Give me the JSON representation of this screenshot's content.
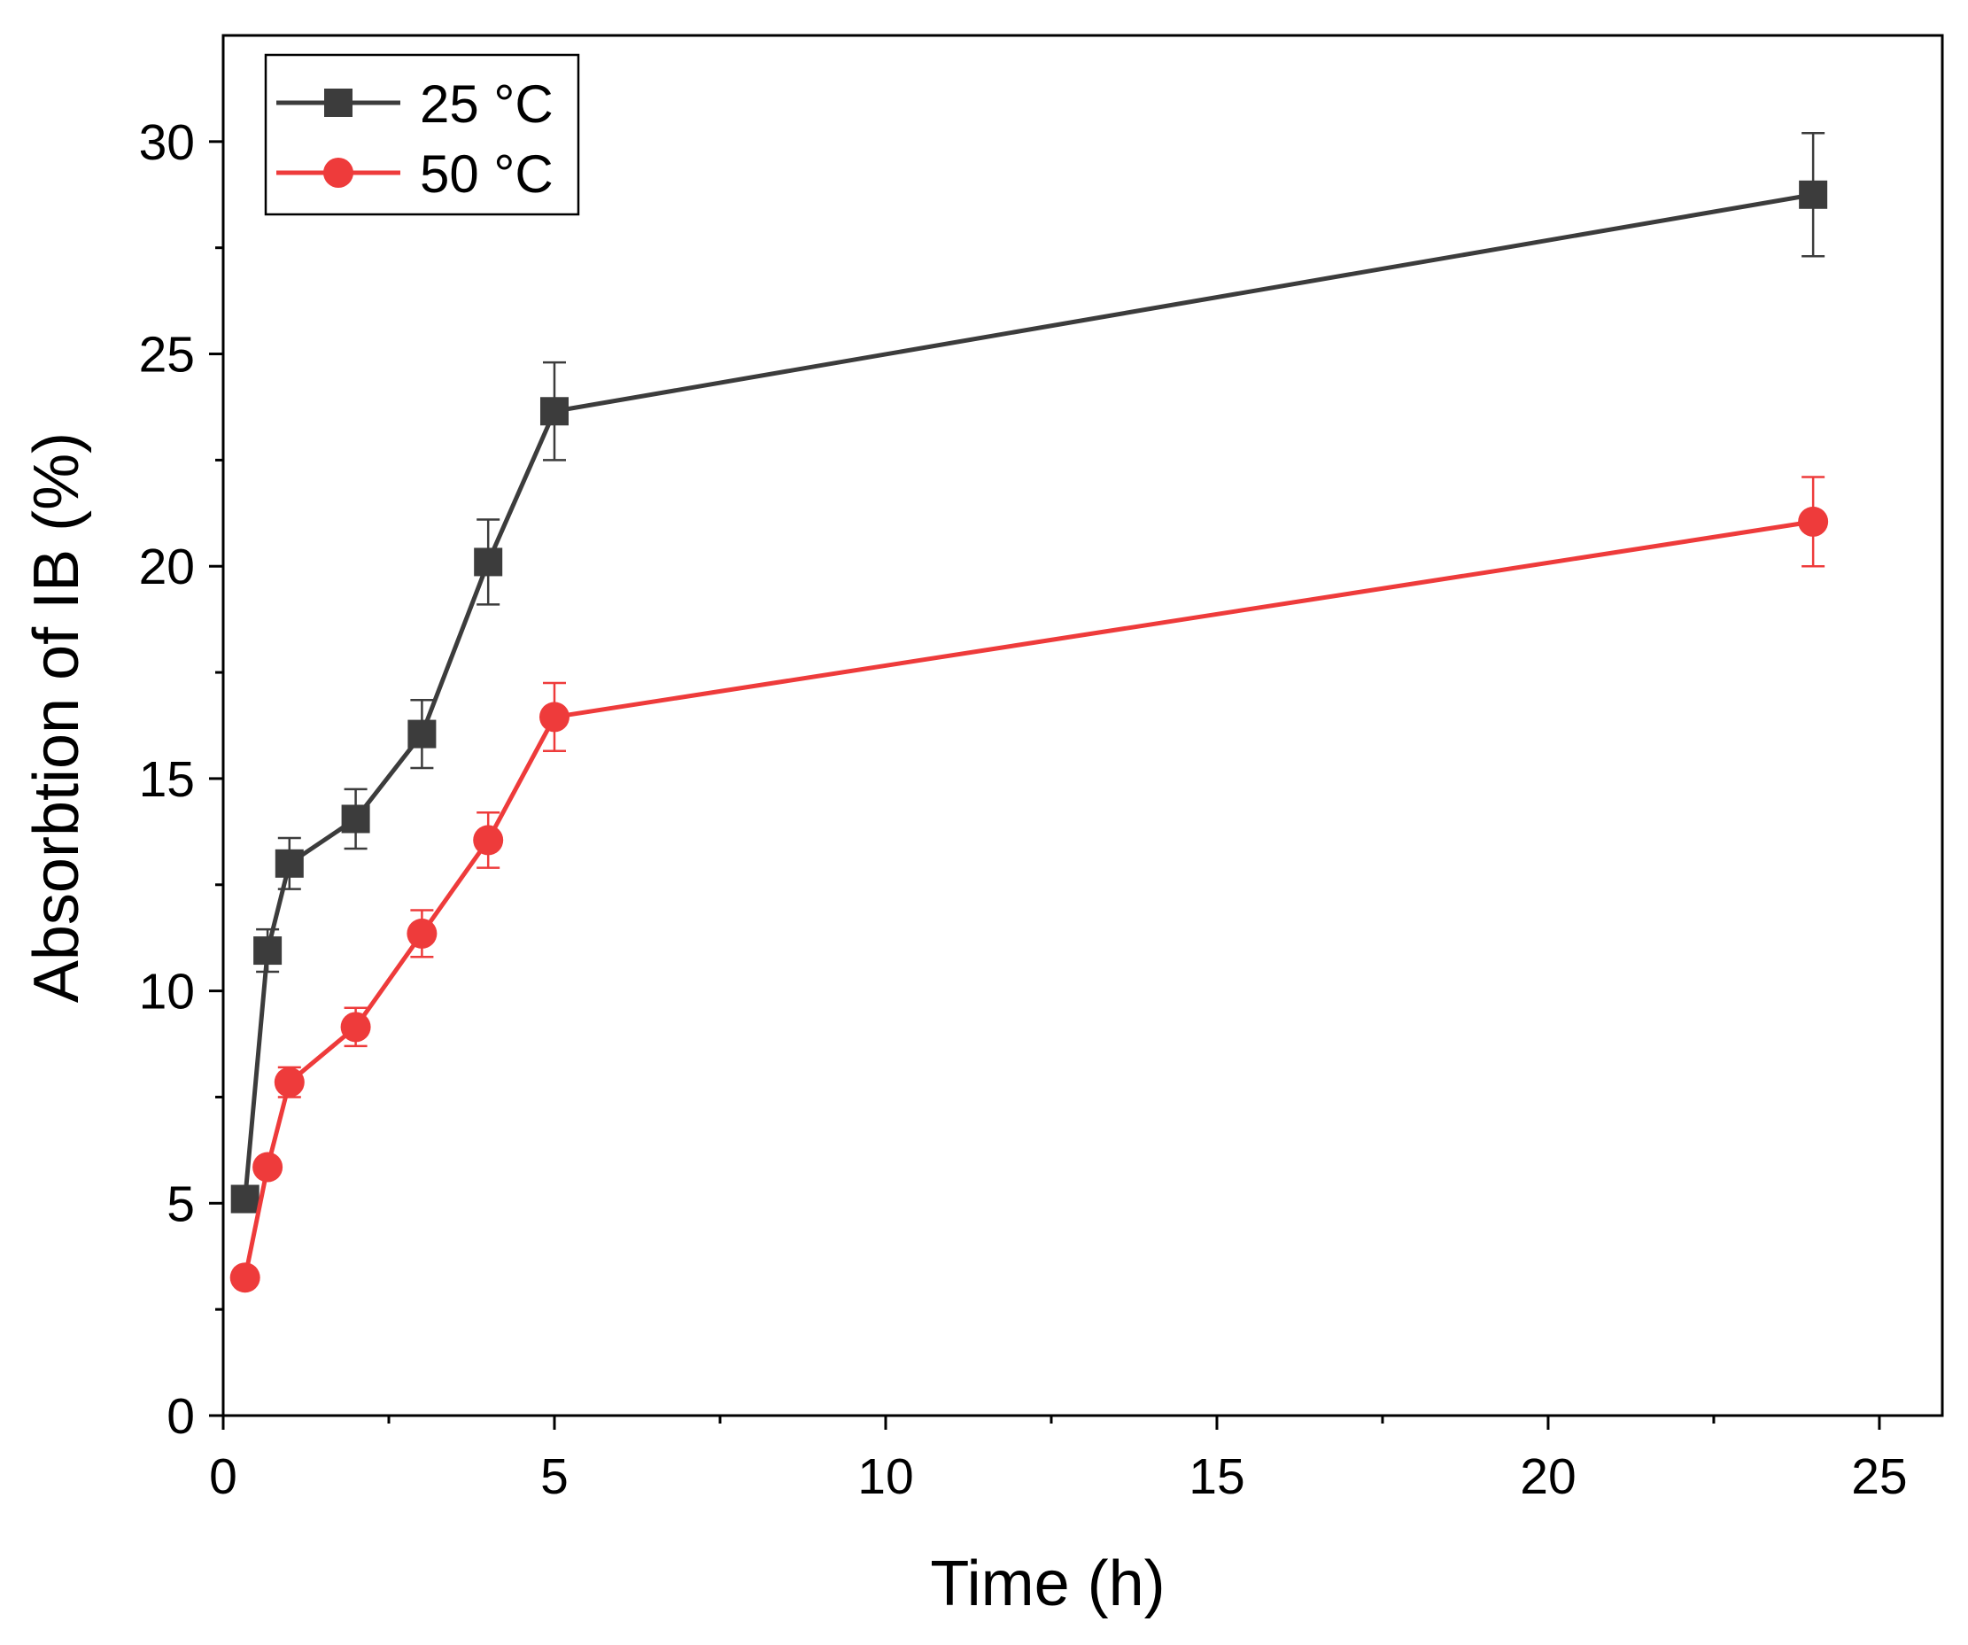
{
  "chart_data": {
    "type": "line",
    "title": "",
    "xlabel": "Time (h)",
    "ylabel": "Absorbtion of IB (%)",
    "xlim": [
      0,
      25.95
    ],
    "ylim": [
      0,
      32.5
    ],
    "xticks": [
      0,
      5,
      10,
      15,
      20,
      25
    ],
    "xtick_labels": [
      "0",
      "5",
      "10",
      "15",
      "20",
      "25"
    ],
    "yticks": [
      0,
      5,
      10,
      15,
      20,
      25,
      30
    ],
    "ytick_labels": [
      "0",
      "5",
      "10",
      "15",
      "20",
      "25",
      "30"
    ],
    "x_minor_ticks": [
      2.5,
      7.5,
      12.5,
      17.5,
      22.5
    ],
    "y_minor_ticks": [
      2.5,
      7.5,
      12.5,
      17.5,
      22.5,
      27.5
    ],
    "grid": false,
    "legend_position": "top-left",
    "series": [
      {
        "name": "25 °C",
        "color": "#3c3c3c",
        "marker": "square",
        "x": [
          0.33,
          0.67,
          1,
          2,
          3,
          4,
          5,
          24
        ],
        "y": [
          5.1,
          10.95,
          13.0,
          14.05,
          16.05,
          20.1,
          23.65,
          28.75
        ],
        "error": [
          0.0,
          0.5,
          0.6,
          0.7,
          0.8,
          1.0,
          1.15,
          1.45
        ]
      },
      {
        "name": "50 °C",
        "color": "#ee3b3b",
        "marker": "circle",
        "x": [
          0.33,
          0.67,
          1,
          2,
          3,
          4,
          5,
          24
        ],
        "y": [
          3.25,
          5.85,
          7.85,
          9.15,
          11.35,
          13.55,
          16.45,
          21.05
        ],
        "error": [
          0.0,
          0.15,
          0.35,
          0.45,
          0.55,
          0.65,
          0.8,
          1.05
        ]
      }
    ]
  }
}
